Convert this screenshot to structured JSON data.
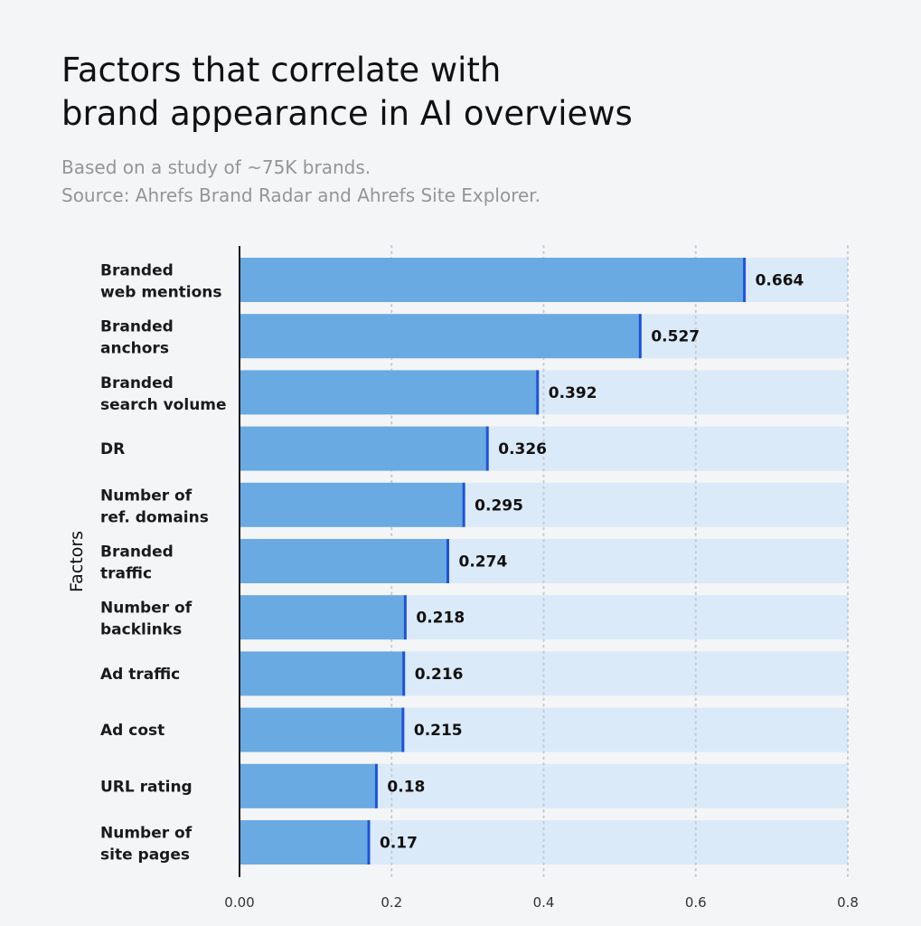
{
  "header": {
    "title_line1": "Factors that correlate with",
    "title_line2": "brand appearance in AI overviews",
    "subtitle_line1": "Based on a study of ~75K brands.",
    "subtitle_line2": "Source: Ahrefs Brand Radar and Ahrefs Site Explorer."
  },
  "colors": {
    "bar": "#6aaae2",
    "track": "#dbeaf8",
    "bar_edge": "#1f53d8",
    "axis": "#111111",
    "grid": "#c4cad4"
  },
  "chart_data": {
    "type": "bar",
    "orientation": "horizontal",
    "title": "Factors that correlate with brand appearance in AI overviews",
    "subtitle": "Based on a study of ~75K brands. Source: Ahrefs Brand Radar and Ahrefs Site Explorer.",
    "ylabel": "Factors",
    "xlabel": "",
    "xlim": [
      0,
      0.8
    ],
    "xticks": [
      "0.00",
      "0.2",
      "0.4",
      "0.6",
      "0.8"
    ],
    "xtick_values": [
      0,
      0.2,
      0.4,
      0.6,
      0.8
    ],
    "grid": "vertical dotted",
    "categories": [
      [
        "Branded",
        "web mentions"
      ],
      [
        "Branded",
        "anchors"
      ],
      [
        "Branded",
        "search volume"
      ],
      [
        "DR"
      ],
      [
        "Number of",
        "ref. domains"
      ],
      [
        "Branded",
        "traffic"
      ],
      [
        "Number of",
        "backlinks"
      ],
      [
        "Ad traffic"
      ],
      [
        "Ad cost"
      ],
      [
        "URL rating"
      ],
      [
        "Number of",
        "site pages"
      ]
    ],
    "values": [
      0.664,
      0.527,
      0.392,
      0.326,
      0.295,
      0.274,
      0.218,
      0.216,
      0.215,
      0.18,
      0.17
    ],
    "value_labels": [
      "0.664",
      "0.527",
      "0.392",
      "0.326",
      "0.295",
      "0.274",
      "0.218",
      "0.216",
      "0.215",
      "0.18",
      "0.17"
    ]
  }
}
